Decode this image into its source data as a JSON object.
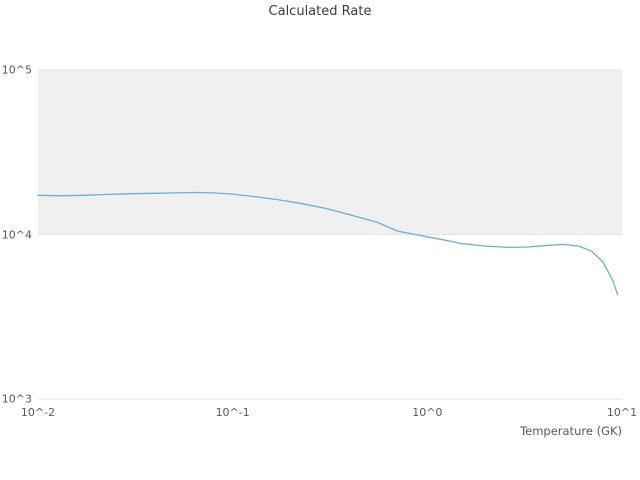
{
  "chart_data": {
    "type": "line",
    "title": "Calculated Rate",
    "xlabel": "Temperature (GK)",
    "ylabel": "",
    "x_scale": "log",
    "y_scale": "log",
    "xlim": [
      0.01,
      10
    ],
    "ylim": [
      1000,
      100000
    ],
    "grid": "horizontal-only",
    "legend": "none",
    "x_ticks": [
      {
        "value": 0.01,
        "label": "10^-2"
      },
      {
        "value": 0.1,
        "label": "10^-1"
      },
      {
        "value": 1,
        "label": "10^0"
      },
      {
        "value": 10,
        "label": "10^1"
      }
    ],
    "y_ticks": [
      {
        "value": 1000,
        "label": "10^3"
      },
      {
        "value": 10000,
        "label": "10^4"
      },
      {
        "value": 100000,
        "label": "10^5"
      }
    ],
    "shaded_band": {
      "from": 10000,
      "to": 100000,
      "color": "#f0f0f0"
    },
    "line_color": "#6baed6",
    "series": [
      {
        "name": "calculated-rate",
        "x": [
          0.01,
          0.013,
          0.017,
          0.022,
          0.03,
          0.04,
          0.05,
          0.065,
          0.08,
          0.1,
          0.13,
          0.17,
          0.22,
          0.3,
          0.4,
          0.55,
          0.7,
          0.9,
          1.2,
          1.5,
          2.0,
          2.6,
          3.3,
          4.2,
          5.0,
          6.0,
          7.0,
          8.0,
          9.0,
          9.5
        ],
        "y": [
          17300,
          17200,
          17300,
          17500,
          17700,
          17800,
          17900,
          18000,
          17900,
          17600,
          17000,
          16300,
          15500,
          14400,
          13200,
          11900,
          10500,
          9900,
          9300,
          8800,
          8500,
          8350,
          8400,
          8600,
          8700,
          8500,
          7900,
          6800,
          5200,
          4300
        ]
      }
    ]
  }
}
